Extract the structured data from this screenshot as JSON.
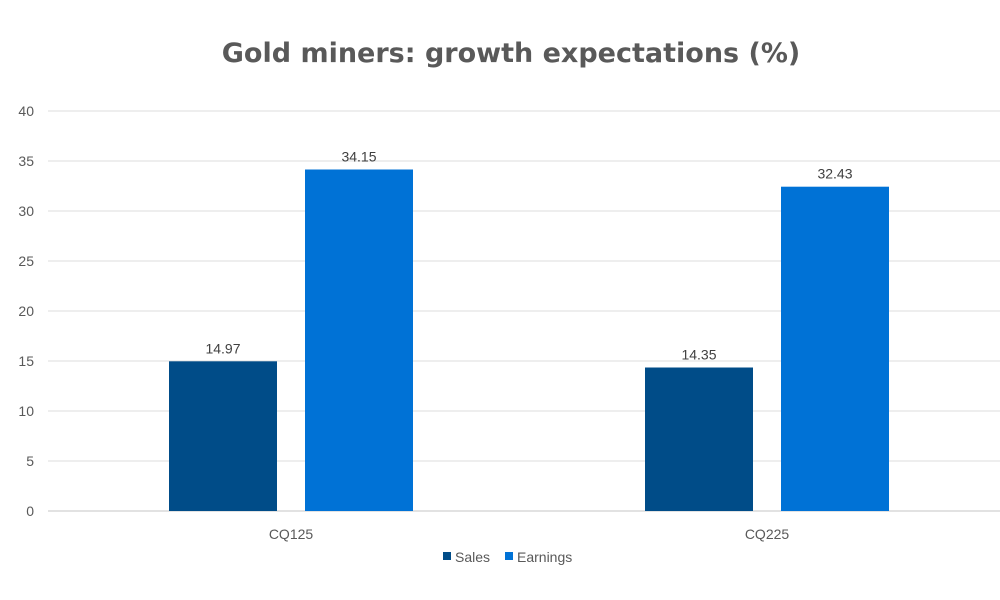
{
  "chart_data": {
    "type": "bar",
    "title": "Gold miners: growth expectations (%)",
    "xlabel": "",
    "ylabel": "",
    "categories": [
      "CQ125",
      "CQ225"
    ],
    "series": [
      {
        "name": "Sales",
        "values": [
          14.97,
          14.35
        ],
        "color": "#004C88"
      },
      {
        "name": "Earnings",
        "values": [
          34.15,
          32.43
        ],
        "color": "#0072D6"
      }
    ],
    "data_labels": [
      [
        "14.97",
        "14.35"
      ],
      [
        "34.15",
        "32.43"
      ]
    ],
    "ylim": [
      0,
      40
    ],
    "yticks": [
      0,
      5,
      10,
      15,
      20,
      25,
      30,
      35,
      40
    ],
    "grid": true,
    "legend_position": "bottom"
  }
}
